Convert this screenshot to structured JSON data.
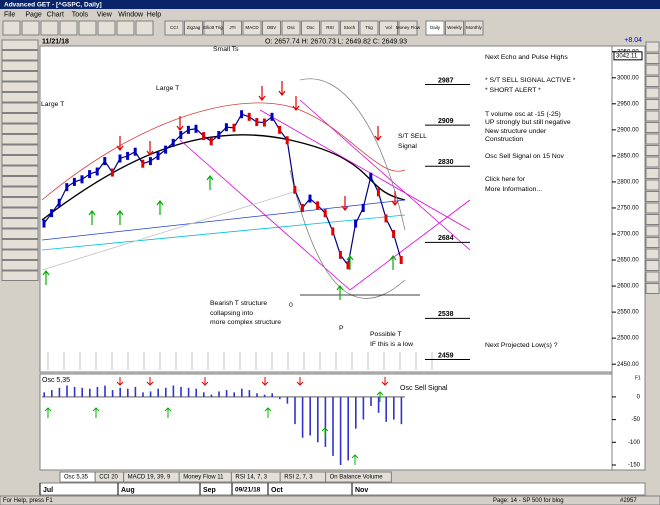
{
  "window_title": "Advanced GET - [^GSPC, Daily]",
  "menu": [
    "File",
    "Page",
    "Chart",
    "Tools",
    "View",
    "Window",
    "Help"
  ],
  "toolbar": [
    "CCI",
    "Zigzag",
    "Elliott Trig",
    "JTI",
    "MACD",
    "OBV",
    "Osc",
    "Osc",
    "RSI",
    "Stoch",
    "Trig",
    "Vol",
    "Money Flow",
    "Daily",
    "Weekly",
    "Monthly"
  ],
  "change": "+8.04",
  "info": {
    "date": "11/21/18",
    "ohlc": "O: 2657.74 H: 2670.73 L: 2649.82 C: 2649.93"
  },
  "chart_data": [
    {
      "type": "line",
      "color": "#000080",
      "ylim": [
        2435,
        3061
      ],
      "yticks": [
        {
          "value": 3050,
          "label": "3050.00"
        },
        {
          "value": 3000,
          "label": "3000.00"
        },
        {
          "value": 2950,
          "label": "2950.00"
        },
        {
          "value": 2900,
          "label": "2900.00"
        },
        {
          "value": 2850,
          "label": "2850.00"
        },
        {
          "value": 2800,
          "label": "2800.00"
        },
        {
          "value": 2750,
          "label": "2750.00"
        },
        {
          "value": 2700,
          "label": "2700.00"
        },
        {
          "value": 2650,
          "label": "2650.00"
        },
        {
          "value": 2600,
          "label": "2600.00"
        },
        {
          "value": 2550,
          "label": "2550.00"
        },
        {
          "value": 2500,
          "label": "2500.00"
        },
        {
          "value": 2450,
          "label": "2450.00"
        }
      ],
      "price_marker": 3042.11,
      "values": [
        2720,
        2740,
        2760,
        2790,
        2800,
        2805,
        2815,
        2820,
        2840,
        2818,
        2845,
        2850,
        2858,
        2835,
        2840,
        2850,
        2862,
        2875,
        2890,
        2900,
        2902,
        2888,
        2878,
        2890,
        2905,
        2904,
        2930,
        2925,
        2915,
        2914,
        2925,
        2900,
        2880,
        2785,
        2750,
        2768,
        2755,
        2740,
        2705,
        2660,
        2640,
        2720,
        2750,
        2810,
        2780,
        2730,
        2700,
        2650
      ],
      "levels": [
        2987,
        2909,
        2830,
        2684,
        2538,
        2459
      ],
      "annotations": [
        "Next Echo and Pulse Highs",
        "* S/T SELL SIGNAL ACTIVE *",
        "* SHORT ALERT *",
        "T volume osc at -15 (-25)",
        "UP strongly but still negative",
        "New structure under",
        "Construction",
        "Osc Sell Signal on 15 Nov",
        "Click here for",
        "More Information...",
        "Next Projected Low(s) ?",
        "S/T SELL",
        "Signal",
        "Large T",
        "Large T",
        "Small Ts",
        "Bearish T structure",
        "collapsing into",
        "more complex structure",
        "Possible T",
        "IF this is a low",
        "0",
        "P"
      ],
      "x_labels": [
        "Jul",
        "Aug",
        "Sep",
        "09/21/18",
        "Oct",
        "Nov"
      ]
    },
    {
      "type": "bar",
      "title": "Osc 5,35",
      "color": "#3333cc",
      "ylim": [
        -161,
        46
      ],
      "yticks": [
        0,
        -50,
        -100,
        -150
      ],
      "values": [
        10,
        15,
        20,
        25,
        22,
        20,
        18,
        22,
        25,
        15,
        20,
        18,
        22,
        10,
        12,
        18,
        20,
        25,
        22,
        20,
        18,
        10,
        5,
        12,
        15,
        10,
        18,
        15,
        8,
        5,
        8,
        -5,
        -15,
        -60,
        -90,
        -85,
        -100,
        -110,
        -130,
        -150,
        -140,
        -70,
        -50,
        -20,
        -35,
        -55,
        -50,
        -60
      ],
      "annotation": "Osc Sell Signal",
      "corner_label": "F1"
    }
  ],
  "tabs": [
    "Osc 5,35",
    "CCI 20",
    "MACD 19, 39, 9",
    "Money Flow 11",
    "RSI 14, 7, 3",
    "RSI 2, 7, 3",
    "On Balance Volume"
  ],
  "status": {
    "help": "For Help, press F1",
    "page": "Page: 14 - SP 500 for blog",
    "id": "#2957"
  }
}
